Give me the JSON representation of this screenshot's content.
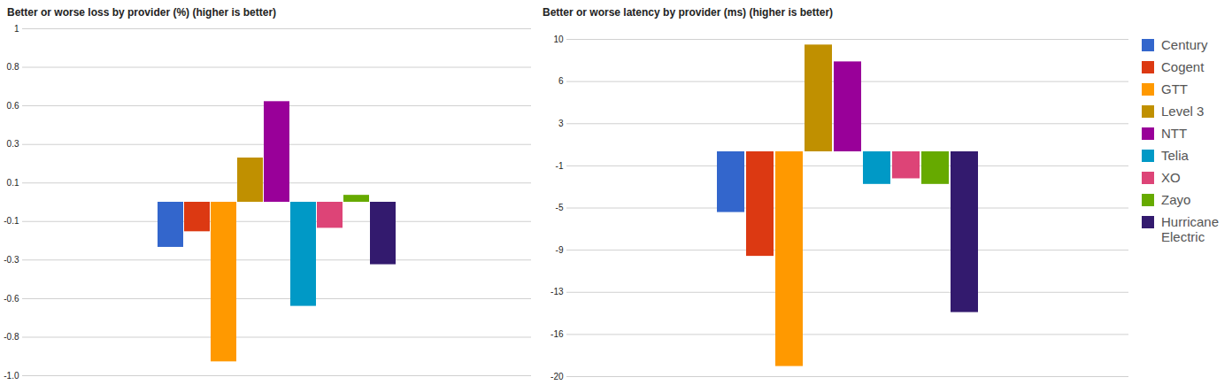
{
  "chart_data": [
    {
      "type": "bar",
      "title": "Better or worse loss by provider (%) (higher is better)",
      "categories": [
        "Century",
        "Cogent",
        "GTT",
        "Level 3",
        "NTT",
        "Telia",
        "XO",
        "Zayo",
        "Hurricane Electric"
      ],
      "values": [
        -0.26,
        -0.17,
        -0.92,
        0.255,
        0.58,
        -0.6,
        -0.15,
        0.04,
        -0.36
      ],
      "colors": [
        "#3366cc",
        "#dc3912",
        "#ff9900",
        "#c09000",
        "#990099",
        "#0099c6",
        "#dd4477",
        "#66aa00",
        "#331a6e"
      ],
      "ylim": [
        -1.0,
        1.0
      ],
      "yticks": [
        1.0,
        {
          "value": 0.778,
          "label": "0.8"
        },
        {
          "value": 0.556,
          "label": "0.6"
        },
        {
          "value": 0.333,
          "label": "0.3"
        },
        {
          "value": 0.111,
          "label": "0.1"
        },
        {
          "value": -0.111,
          "label": "-0.1"
        },
        {
          "value": -0.333,
          "label": "-0.3"
        },
        {
          "value": -0.556,
          "label": "-0.6"
        },
        {
          "value": -0.778,
          "label": "-0.8"
        },
        {
          "value": -1.0,
          "label": "-1.0"
        }
      ],
      "grid": true,
      "tick_labels": "y"
    },
    {
      "type": "bar",
      "title": "Better or worse latency by provider (ms) (higher is better)",
      "categories": [
        "Century",
        "Cogent",
        "GTT",
        "Level 3",
        "NTT",
        "Telia",
        "XO",
        "Zayo",
        "Hurricane Electric"
      ],
      "values": [
        -5.4,
        -9.3,
        -19.1,
        9.5,
        8.0,
        -2.9,
        -2.4,
        -2.9,
        -14.3
      ],
      "colors": [
        "#3366cc",
        "#dc3912",
        "#ff9900",
        "#c09000",
        "#990099",
        "#0099c6",
        "#dd4477",
        "#66aa00",
        "#331a6e"
      ],
      "ylim": [
        -20,
        10
      ],
      "yticks": [
        10,
        {
          "value": 6.25,
          "label": "6"
        },
        {
          "value": 2.5,
          "label": "3"
        },
        {
          "value": -1.25,
          "label": "-1"
        },
        -5,
        {
          "value": -8.75,
          "label": "-9"
        },
        {
          "value": -12.5,
          "label": "-13"
        },
        {
          "value": -16.25,
          "label": "-16"
        },
        -20
      ],
      "grid": true,
      "tick_labels": "y",
      "legend": "right"
    }
  ]
}
